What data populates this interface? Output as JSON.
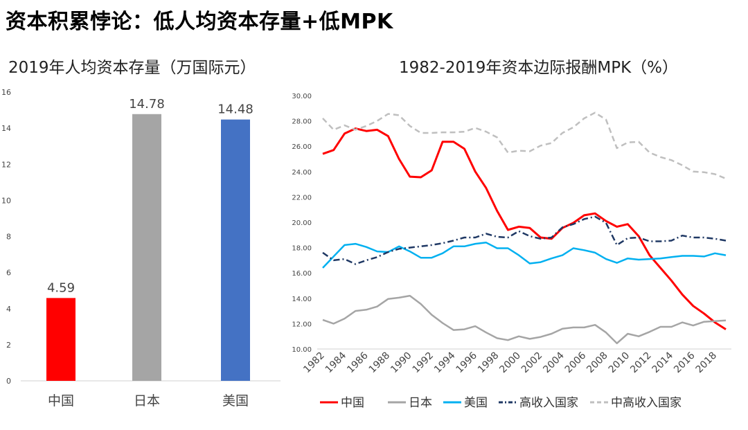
{
  "headline": "资本积累悖论：低人均资本存量+低MPK",
  "chart_data": [
    {
      "type": "bar",
      "title": "2019年人均资本存量（万国际元）",
      "categories": [
        "中国",
        "日本",
        "美国"
      ],
      "values": [
        4.59,
        14.78,
        14.48
      ],
      "value_labels": [
        "4.59",
        "14.78",
        "14.48"
      ],
      "colors": [
        "#ff0000",
        "#a5a5a5",
        "#4472c4"
      ],
      "ylim": [
        0,
        16
      ],
      "yticks": [
        "0",
        "2",
        "4",
        "6",
        "8",
        "10",
        "12",
        "14",
        "16"
      ],
      "grid": false,
      "legend": "none"
    },
    {
      "type": "line",
      "title": "1982-2019年资本边际报酬MPK（%）",
      "x": [
        1982,
        1983,
        1984,
        1985,
        1986,
        1987,
        1988,
        1989,
        1990,
        1991,
        1992,
        1993,
        1994,
        1995,
        1996,
        1997,
        1998,
        1999,
        2000,
        2001,
        2002,
        2003,
        2004,
        2005,
        2006,
        2007,
        2008,
        2009,
        2010,
        2011,
        2012,
        2013,
        2014,
        2015,
        2016,
        2017,
        2018,
        2019
      ],
      "xticks": [
        "1982",
        "1984",
        "1986",
        "1988",
        "1990",
        "1992",
        "1994",
        "1996",
        "1998",
        "2000",
        "2002",
        "2004",
        "2006",
        "2008",
        "2010",
        "2012",
        "2014",
        "2016",
        "2018"
      ],
      "ylim": [
        10,
        30
      ],
      "yticks": [
        "10.00",
        "12.00",
        "14.00",
        "16.00",
        "18.00",
        "20.00",
        "22.00",
        "24.00",
        "26.00",
        "28.00",
        "30.00"
      ],
      "grid": false,
      "legend": "bottom",
      "series": [
        {
          "name": "中国",
          "color": "#ff0000",
          "style": "solid",
          "values": [
            25.4,
            25.7,
            27.0,
            27.4,
            27.2,
            27.3,
            26.8,
            25.0,
            23.6,
            23.55,
            24.1,
            26.35,
            26.35,
            25.8,
            24.0,
            22.7,
            20.9,
            19.4,
            19.65,
            19.55,
            18.8,
            18.7,
            19.55,
            19.95,
            20.55,
            20.7,
            20.1,
            19.65,
            19.85,
            18.9,
            17.4,
            16.4,
            15.4,
            14.3,
            13.4,
            12.8,
            12.1,
            11.55
          ]
        },
        {
          "name": "日本",
          "color": "#a5a5a5",
          "style": "solid",
          "values": [
            12.3,
            12.0,
            12.4,
            13.0,
            13.1,
            13.35,
            13.95,
            14.05,
            14.2,
            13.55,
            12.7,
            12.05,
            11.5,
            11.55,
            11.8,
            11.3,
            10.85,
            10.7,
            11.0,
            10.8,
            10.95,
            11.2,
            11.6,
            11.7,
            11.7,
            11.9,
            11.3,
            10.45,
            11.2,
            11.0,
            11.35,
            11.75,
            11.75,
            12.1,
            11.85,
            12.15,
            12.2,
            12.25
          ]
        },
        {
          "name": "美国",
          "color": "#00b0f0",
          "style": "solid",
          "values": [
            16.4,
            17.3,
            18.2,
            18.3,
            18.05,
            17.7,
            17.65,
            18.1,
            17.7,
            17.2,
            17.2,
            17.55,
            18.1,
            18.1,
            18.3,
            18.4,
            17.95,
            17.95,
            17.4,
            16.75,
            16.85,
            17.15,
            17.4,
            17.95,
            17.8,
            17.6,
            17.1,
            16.8,
            17.15,
            17.05,
            17.1,
            17.15,
            17.25,
            17.35,
            17.35,
            17.3,
            17.55,
            17.4
          ]
        },
        {
          "name": "高收入国家",
          "color": "#1f3864",
          "style": "dashdot",
          "values": [
            17.6,
            17.0,
            17.1,
            16.7,
            17.0,
            17.25,
            17.65,
            17.9,
            18.0,
            18.1,
            18.2,
            18.35,
            18.55,
            18.8,
            18.8,
            19.1,
            18.85,
            18.8,
            19.3,
            18.9,
            18.7,
            18.8,
            19.6,
            19.85,
            20.25,
            20.45,
            19.95,
            18.2,
            18.75,
            18.8,
            18.5,
            18.5,
            18.55,
            18.95,
            18.8,
            18.8,
            18.7,
            18.55
          ]
        },
        {
          "name": "中高收入国家",
          "color": "#bfbfbf",
          "style": "dashed",
          "values": [
            28.2,
            27.3,
            27.65,
            27.3,
            27.6,
            28.0,
            28.55,
            28.45,
            27.6,
            27.05,
            27.05,
            27.1,
            27.1,
            27.15,
            27.45,
            27.15,
            26.7,
            25.5,
            25.65,
            25.6,
            26.05,
            26.25,
            27.05,
            27.5,
            28.2,
            28.65,
            28.1,
            25.85,
            26.3,
            26.35,
            25.5,
            25.15,
            24.9,
            24.5,
            24.0,
            23.95,
            23.8,
            23.45
          ]
        }
      ]
    }
  ]
}
